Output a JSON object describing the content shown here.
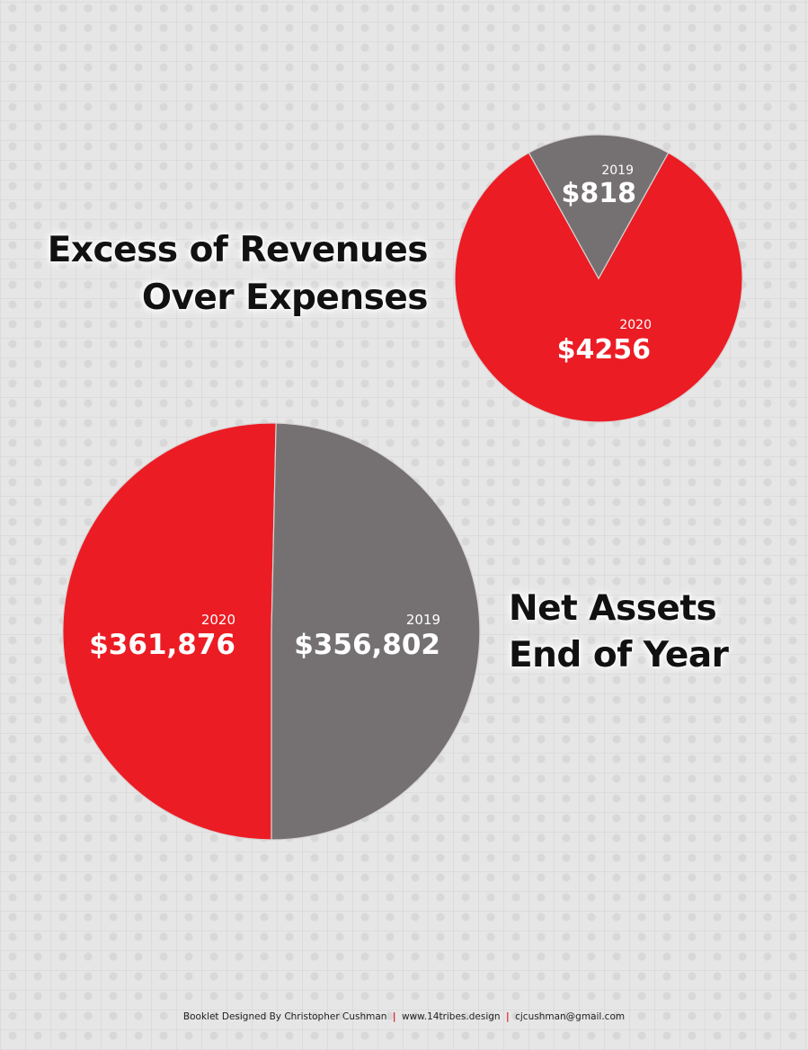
{
  "chart_data": [
    {
      "type": "pie",
      "title_lines": [
        "Excess of Revenues",
        "Over Expenses"
      ],
      "colors": {
        "2020": "#ec1c24",
        "2019": "#757172"
      },
      "slices": [
        {
          "year": "2020",
          "label": "$4256",
          "value": 4256
        },
        {
          "year": "2019",
          "label": "$818",
          "value": 818
        }
      ]
    },
    {
      "type": "pie",
      "title_lines": [
        "Net Assets",
        "End of Year"
      ],
      "colors": {
        "2020": "#ec1c24",
        "2019": "#757172"
      },
      "slices": [
        {
          "year": "2020",
          "label": "$361,876",
          "value": 361876
        },
        {
          "year": "2019",
          "label": "$356,802",
          "value": 356802
        }
      ]
    }
  ],
  "footer": {
    "credit": "Booklet Designed By Christopher Cushman",
    "separator": "|",
    "website": "www.14tribes.design",
    "email": "cjcushman@gmail.com"
  }
}
